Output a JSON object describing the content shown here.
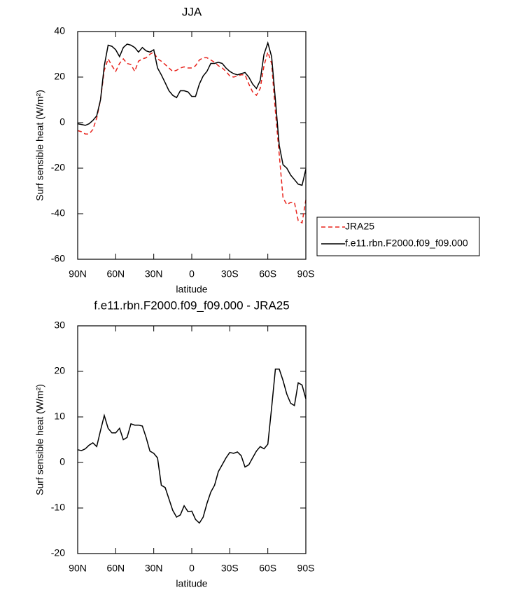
{
  "chart_data": [
    {
      "type": "line",
      "title": "JJA",
      "xlabel": "latitude",
      "ylabel": "Surf sensible heat (W/m²)",
      "x": [
        90,
        87,
        84,
        81,
        78,
        75,
        72,
        69,
        66,
        63,
        60,
        57,
        54,
        51,
        48,
        45,
        42,
        39,
        36,
        33,
        30,
        27,
        24,
        21,
        18,
        15,
        12,
        9,
        6,
        3,
        0,
        -3,
        -6,
        -9,
        -12,
        -15,
        -18,
        -21,
        -24,
        -27,
        -30,
        -33,
        -36,
        -39,
        -42,
        -45,
        -48,
        -51,
        -54,
        -57,
        -60,
        -63,
        -66,
        -69,
        -72,
        -75,
        -78,
        -81,
        -84,
        -87,
        -90
      ],
      "series": [
        {
          "name": "JRA25",
          "color": "#e8231c",
          "dashed": true,
          "values": [
            -3.5,
            -4,
            -5,
            -5,
            -3,
            2,
            10,
            23,
            28,
            25,
            22.5,
            26,
            28,
            26,
            25.5,
            22.5,
            27,
            28,
            28.5,
            30,
            31,
            28,
            27,
            25.5,
            24,
            22.5,
            23,
            24,
            24.5,
            24,
            24,
            25,
            27.5,
            28.5,
            28.5,
            27.5,
            26.5,
            25,
            24,
            22.5,
            20.5,
            20,
            20.5,
            21,
            21,
            17,
            13.5,
            12,
            15,
            25,
            31,
            26,
            5,
            -14,
            -33,
            -36,
            -35,
            -35,
            -43,
            -44,
            -34
          ]
        },
        {
          "name": "f.e11.rbn.F2000.f09_f09.000",
          "color": "#000000",
          "dashed": false,
          "values": [
            -0.5,
            -0.8,
            -1.2,
            -0.5,
            1,
            3,
            10,
            25,
            34,
            33.5,
            32,
            29,
            33,
            34.5,
            34,
            33,
            31,
            33,
            31.5,
            31,
            32,
            24,
            21,
            17.5,
            14,
            12,
            11,
            14,
            14,
            13.5,
            11.5,
            11.5,
            17,
            20.5,
            22.5,
            26,
            26,
            26.5,
            26,
            24,
            22.5,
            21.5,
            21,
            21.5,
            22,
            20,
            17,
            15,
            18.5,
            30,
            35,
            29,
            10,
            -10,
            -18.5,
            -20,
            -23,
            -25,
            -27,
            -27.5,
            -20.5
          ]
        }
      ],
      "xlim": [
        90,
        -90
      ],
      "ylim": [
        -60,
        40
      ],
      "xticks": [
        {
          "value": 90,
          "label": "90N"
        },
        {
          "value": 60,
          "label": "60N"
        },
        {
          "value": 30,
          "label": "30N"
        },
        0,
        {
          "value": -30,
          "label": "30S"
        },
        {
          "value": -60,
          "label": "60S"
        },
        {
          "value": -90,
          "label": "90S"
        }
      ],
      "yticks": [
        -60,
        -40,
        -20,
        0,
        20,
        40
      ],
      "legend": "lower right outside"
    },
    {
      "type": "line",
      "title": "f.e11.rbn.F2000.f09_f09.000 - JRA25",
      "xlabel": "latitude",
      "ylabel": "Surf sensible heat (W/m²)",
      "x": [
        90,
        87,
        84,
        81,
        78,
        75,
        72,
        69,
        66,
        63,
        60,
        57,
        54,
        51,
        48,
        45,
        42,
        39,
        36,
        33,
        30,
        27,
        24,
        21,
        18,
        15,
        12,
        9,
        6,
        3,
        0,
        -3,
        -6,
        -9,
        -12,
        -15,
        -18,
        -21,
        -24,
        -27,
        -30,
        -33,
        -36,
        -39,
        -42,
        -45,
        -48,
        -51,
        -54,
        -57,
        -60,
        -63,
        -66,
        -69,
        -72,
        -75,
        -78,
        -81,
        -84,
        -87,
        -90
      ],
      "series": [
        {
          "color": "#000000",
          "dashed": false,
          "values": [
            2.8,
            2.6,
            3,
            3.8,
            4.3,
            3.5,
            7,
            10.3,
            7.5,
            6.5,
            6.5,
            7.5,
            5,
            5.5,
            8.5,
            8.2,
            8.2,
            8,
            5.5,
            2.5,
            2,
            1,
            -5,
            -5.5,
            -8,
            -10.5,
            -12,
            -11.5,
            -9.5,
            -10.8,
            -10.7,
            -12.5,
            -13.3,
            -12,
            -9,
            -6.5,
            -5,
            -2,
            -0.5,
            1,
            2.2,
            2,
            2.3,
            1.5,
            -1,
            -0.5,
            1,
            2.5,
            3.5,
            3,
            4,
            12,
            20.5,
            20.5,
            18,
            15,
            13,
            12.5,
            17.5,
            17,
            14
          ]
        }
      ],
      "xlim": [
        90,
        -90
      ],
      "ylim": [
        -20,
        30
      ],
      "xticks": [
        {
          "value": 90,
          "label": "90N"
        },
        {
          "value": 60,
          "label": "60N"
        },
        {
          "value": 30,
          "label": "30N"
        },
        0,
        {
          "value": -30,
          "label": "30S"
        },
        {
          "value": -60,
          "label": "60S"
        },
        {
          "value": -90,
          "label": "90S"
        }
      ],
      "yticks": [
        -20,
        -10,
        0,
        10,
        20,
        30
      ]
    }
  ]
}
